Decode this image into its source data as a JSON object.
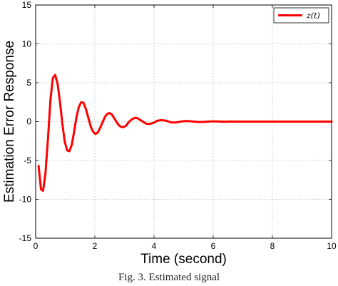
{
  "chart_data": {
    "type": "line",
    "xlabel": "Time (second)",
    "ylabel": "Estimation Error Response",
    "xlim": [
      0,
      10
    ],
    "ylim": [
      -15,
      15
    ],
    "xticks": [
      0,
      2,
      4,
      6,
      8,
      10
    ],
    "yticks": [
      -15,
      -10,
      -5,
      0,
      5,
      10,
      15
    ],
    "grid": true,
    "legend_position": "top-right",
    "series": [
      {
        "name": "z(t)",
        "color": "#ff0000",
        "x": [
          0.1,
          0.18,
          0.25,
          0.33,
          0.42,
          0.5,
          0.58,
          0.66,
          0.74,
          0.82,
          0.9,
          0.98,
          1.06,
          1.14,
          1.22,
          1.3,
          1.38,
          1.46,
          1.54,
          1.62,
          1.7,
          1.78,
          1.86,
          1.94,
          2.02,
          2.1,
          2.18,
          2.26,
          2.34,
          2.42,
          2.5,
          2.58,
          2.66,
          2.74,
          2.82,
          2.9,
          2.98,
          3.06,
          3.14,
          3.22,
          3.3,
          3.38,
          3.46,
          3.54,
          3.62,
          3.7,
          3.78,
          3.86,
          3.94,
          4.02,
          4.1,
          4.18,
          4.26,
          4.34,
          4.42,
          4.5,
          4.58,
          4.66,
          4.74,
          4.82,
          4.9,
          4.98,
          5.1,
          5.22,
          5.34,
          5.46,
          5.58,
          5.7,
          5.82,
          5.94,
          6.06,
          6.2,
          6.4,
          6.6,
          6.8,
          7.0,
          7.2,
          7.4,
          7.6,
          7.8,
          8.0,
          8.4,
          8.8,
          9.2,
          9.6,
          10.0
        ],
        "y": [
          -5.7,
          -8.7,
          -8.9,
          -6.7,
          -2.0,
          2.8,
          5.6,
          6.0,
          4.9,
          2.6,
          -0.2,
          -2.5,
          -3.7,
          -3.8,
          -3.0,
          -1.3,
          0.6,
          1.9,
          2.5,
          2.4,
          1.6,
          0.5,
          -0.6,
          -1.3,
          -1.6,
          -1.4,
          -0.8,
          -0.1,
          0.6,
          1.0,
          1.1,
          0.9,
          0.4,
          -0.1,
          -0.5,
          -0.7,
          -0.7,
          -0.5,
          -0.1,
          0.2,
          0.4,
          0.5,
          0.4,
          0.2,
          0.0,
          -0.2,
          -0.3,
          -0.3,
          -0.2,
          -0.1,
          0.1,
          0.15,
          0.2,
          0.15,
          0.1,
          0.0,
          -0.1,
          -0.12,
          -0.1,
          -0.05,
          0.0,
          0.05,
          0.08,
          0.05,
          0.0,
          -0.04,
          -0.05,
          -0.03,
          0.0,
          0.02,
          0.03,
          0.01,
          -0.01,
          0.01,
          0.0,
          0.0,
          0.0,
          0.0,
          0.0,
          0.0,
          0.0,
          0.0,
          0.0,
          0.0,
          0.0,
          0.0
        ]
      }
    ]
  },
  "caption": "Fig. 3. Estimated signal"
}
